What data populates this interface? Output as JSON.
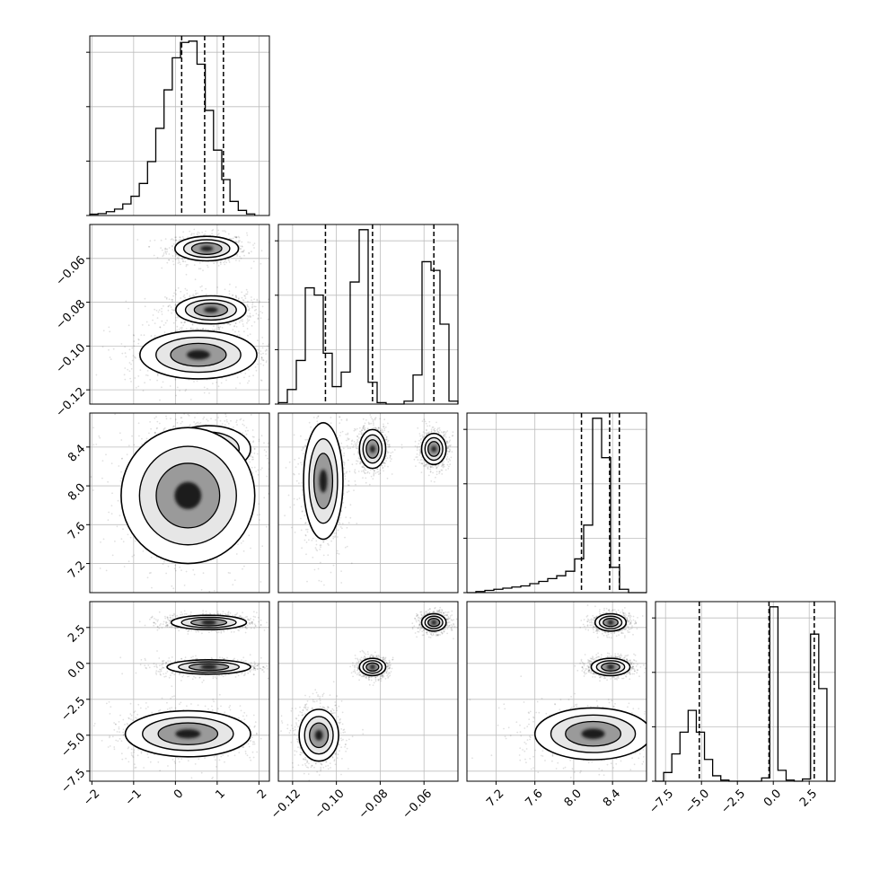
{
  "chart_data": {
    "type": "corner",
    "title": "",
    "grid": true,
    "parameters": [
      {
        "name": "",
        "ticks": [
          -2,
          -1,
          0,
          1,
          2
        ],
        "tick_labels": [
          "−2",
          "−1",
          "0",
          "1",
          "2"
        ],
        "range": [
          -2.05,
          2.25
        ]
      },
      {
        "name": "",
        "ticks": [
          -0.12,
          -0.1,
          -0.08,
          -0.06
        ],
        "tick_labels": [
          "−0.12",
          "−0.10",
          "−0.08",
          "−0.06"
        ],
        "range": [
          -0.1265,
          -0.0445
        ]
      },
      {
        "name": "",
        "ticks": [
          7.2,
          7.6,
          8.0,
          8.4
        ],
        "tick_labels": [
          "7.2",
          "7.6",
          "8.0",
          "8.4"
        ],
        "range": [
          6.9,
          8.75
        ]
      },
      {
        "name": "",
        "ticks": [
          -7.5,
          -5.0,
          -2.5,
          0.0,
          2.5
        ],
        "tick_labels": [
          "−7.5",
          "−5.0",
          "−2.5",
          "0.0",
          "2.5"
        ],
        "range": [
          -8.2,
          4.3
        ]
      }
    ],
    "histograms": [
      {
        "param": 0,
        "bin_edges": [
          -2.05,
          1.9
        ],
        "counts": [
          0.1,
          0.15,
          0.3,
          0.5,
          0.9,
          1.5,
          2.5,
          4.2,
          6.8,
          9.8,
          12.3,
          13.5,
          13.6,
          11.8,
          8.2,
          5.1,
          2.8,
          1.1,
          0.4,
          0.12
        ],
        "quantiles": [
          0.15,
          0.7,
          1.15
        ]
      },
      {
        "param": 1,
        "bin_edges": [
          -0.1265,
          -0.0445
        ],
        "counts": [
          0.1,
          1.0,
          3.0,
          8.0,
          7.5,
          3.5,
          1.2,
          2.2,
          8.4,
          12.0,
          1.5,
          0.1,
          0.0,
          0.0,
          0.2,
          2.0,
          9.8,
          9.2,
          5.5,
          0.2
        ],
        "quantiles": [
          -0.105,
          -0.0835,
          -0.0555
        ]
      },
      {
        "param": 2,
        "bin_edges": [
          6.9,
          8.75
        ],
        "counts": [
          0.0,
          0.02,
          0.04,
          0.06,
          0.08,
          0.1,
          0.12,
          0.16,
          0.2,
          0.25,
          0.3,
          0.38,
          0.6,
          1.2,
          3.1,
          2.4,
          0.45,
          0.06,
          0.0,
          0.0
        ],
        "quantiles": [
          8.08,
          8.37,
          8.47
        ]
      },
      {
        "param": 3,
        "bin_edges": [
          -8.2,
          4.3
        ],
        "counts": [
          0.0,
          0.08,
          0.25,
          0.45,
          0.65,
          0.45,
          0.2,
          0.05,
          0.01,
          0.0,
          0.0,
          0.0,
          0.0,
          0.03,
          1.6,
          0.1,
          0.01,
          0.0,
          0.02,
          1.35,
          0.85,
          0.0
        ],
        "quantiles": [
          -5.15,
          -0.3,
          2.85
        ]
      }
    ],
    "contour_panels": [
      {
        "x": 0,
        "y": 1,
        "clusters": [
          {
            "center": [
              0.75,
              -0.0555
            ],
            "spread": [
              0.38,
              0.0028
            ]
          },
          {
            "center": [
              0.85,
              -0.0835
            ],
            "spread": [
              0.42,
              0.0032
            ]
          },
          {
            "center": [
              0.55,
              -0.104
            ],
            "spread": [
              0.7,
              0.0055
            ]
          }
        ]
      },
      {
        "x": 0,
        "y": 2,
        "clusters": [
          {
            "center": [
              0.8,
              8.38
            ],
            "spread": [
              0.5,
              0.12
            ]
          },
          {
            "center": [
              0.3,
              7.9
            ],
            "spread": [
              0.8,
              0.35
            ]
          }
        ]
      },
      {
        "x": 1,
        "y": 2,
        "clusters": [
          {
            "center": [
              -0.0555,
              8.38
            ],
            "spread": [
              0.0028,
              0.08
            ]
          },
          {
            "center": [
              -0.0835,
              8.38
            ],
            "spread": [
              0.003,
              0.1
            ]
          },
          {
            "center": [
              -0.106,
              8.05
            ],
            "spread": [
              0.0045,
              0.3
            ]
          }
        ]
      },
      {
        "x": 0,
        "y": 3,
        "clusters": [
          {
            "center": [
              0.8,
              2.85
            ],
            "spread": [
              0.45,
              0.25
            ]
          },
          {
            "center": [
              0.8,
              -0.25
            ],
            "spread": [
              0.5,
              0.25
            ]
          },
          {
            "center": [
              0.3,
              -4.9
            ],
            "spread": [
              0.75,
              0.8
            ]
          }
        ]
      },
      {
        "x": 1,
        "y": 3,
        "clusters": [
          {
            "center": [
              -0.0555,
              2.85
            ],
            "spread": [
              0.0028,
              0.3
            ]
          },
          {
            "center": [
              -0.0835,
              -0.25
            ],
            "spread": [
              0.003,
              0.3
            ]
          },
          {
            "center": [
              -0.108,
              -5.0
            ],
            "spread": [
              0.0045,
              0.9
            ]
          }
        ]
      },
      {
        "x": 2,
        "y": 3,
        "clusters": [
          {
            "center": [
              8.38,
              2.85
            ],
            "spread": [
              0.08,
              0.3
            ]
          },
          {
            "center": [
              8.38,
              -0.25
            ],
            "spread": [
              0.1,
              0.3
            ]
          },
          {
            "center": [
              8.2,
              -4.9
            ],
            "spread": [
              0.3,
              0.9
            ]
          }
        ]
      }
    ]
  }
}
